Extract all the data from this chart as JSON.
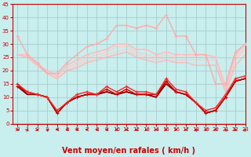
{
  "title": "",
  "xlabel": "Vent moyen/en rafales ( km/h )",
  "ylabel": "",
  "bg_color": "#c8eeee",
  "grid_color": "#aacccc",
  "xlim": [
    -0.5,
    23
  ],
  "ylim": [
    0,
    45
  ],
  "yticks": [
    0,
    5,
    10,
    15,
    20,
    25,
    30,
    35,
    40,
    45
  ],
  "xticks": [
    0,
    1,
    2,
    3,
    4,
    5,
    6,
    7,
    8,
    9,
    10,
    11,
    12,
    13,
    14,
    15,
    16,
    17,
    18,
    19,
    20,
    21,
    22,
    23
  ],
  "series": [
    {
      "name": "rafales_max_light",
      "y": [
        33,
        26,
        23,
        19,
        19,
        23,
        26,
        29,
        30,
        32,
        37,
        37,
        36,
        37,
        36,
        41,
        33,
        33,
        26,
        26,
        15,
        15,
        27,
        30
      ],
      "color": "#ffaaaa",
      "lw": 1.0,
      "marker": "+",
      "ms": 3.0,
      "zorder": 3
    },
    {
      "name": "vent_moyen_upper_light",
      "y": [
        26,
        26,
        22,
        20,
        18,
        22,
        24,
        26,
        27,
        28,
        30,
        30,
        28,
        28,
        26,
        27,
        26,
        26,
        26,
        26,
        25,
        14,
        26,
        30
      ],
      "color": "#ffbbbb",
      "lw": 1.0,
      "marker": "+",
      "ms": 3.0,
      "zorder": 2
    },
    {
      "name": "vent_moyen_flat_light1",
      "y": [
        26,
        26,
        22,
        19,
        18,
        21,
        23,
        25,
        26,
        27,
        29,
        29,
        27,
        26,
        25,
        26,
        25,
        25,
        25,
        25,
        25,
        14,
        25,
        29
      ],
      "color": "#ffcccc",
      "lw": 1.0,
      "marker": null,
      "ms": 0,
      "zorder": 1
    },
    {
      "name": "vent_moyen_flat_light2",
      "y": [
        26,
        25,
        22,
        19,
        17,
        20,
        22,
        24,
        25,
        26,
        27,
        28,
        26,
        25,
        24,
        25,
        24,
        24,
        24,
        24,
        24,
        13,
        24,
        28
      ],
      "color": "#ffcccc",
      "lw": 1.0,
      "marker": null,
      "ms": 0,
      "zorder": 1
    },
    {
      "name": "vent_moyen_declining_light",
      "y": [
        26,
        25,
        22,
        19,
        17,
        20,
        21,
        23,
        24,
        25,
        26,
        27,
        25,
        24,
        23,
        24,
        23,
        23,
        22,
        22,
        22,
        12,
        22,
        26
      ],
      "color": "#ffbbbb",
      "lw": 1.2,
      "marker": null,
      "ms": 0,
      "zorder": 1
    },
    {
      "name": "rafales_dark",
      "y": [
        15,
        12,
        11,
        10,
        5,
        8,
        11,
        12,
        11,
        14,
        12,
        14,
        12,
        12,
        11,
        17,
        13,
        12,
        8,
        5,
        6,
        11,
        17,
        18
      ],
      "color": "#ff2222",
      "lw": 1.0,
      "marker": "+",
      "ms": 3.5,
      "zorder": 4
    },
    {
      "name": "vent_moyen_dark1",
      "y": [
        14,
        12,
        11,
        10,
        4,
        8,
        10,
        11,
        11,
        13,
        11,
        13,
        11,
        11,
        11,
        16,
        12,
        11,
        8,
        4,
        5,
        10,
        16,
        17
      ],
      "color": "#cc0000",
      "lw": 1.0,
      "marker": "+",
      "ms": 3.0,
      "zorder": 3
    },
    {
      "name": "vent_moyen_dark2",
      "y": [
        14,
        11,
        11,
        10,
        4,
        8,
        10,
        11,
        11,
        12,
        11,
        12,
        11,
        11,
        10,
        15,
        12,
        11,
        8,
        4,
        5,
        10,
        16,
        17
      ],
      "color": "#dd0000",
      "lw": 1.0,
      "marker": null,
      "ms": 0,
      "zorder": 2
    },
    {
      "name": "vent_moyen_dark3",
      "y": [
        15,
        11,
        11,
        10,
        4,
        8,
        10,
        11,
        11,
        12,
        11,
        12,
        11,
        11,
        10,
        16,
        12,
        11,
        8,
        4,
        5,
        10,
        16,
        17
      ],
      "color": "#990000",
      "lw": 1.0,
      "marker": null,
      "ms": 0,
      "zorder": 2
    },
    {
      "name": "vent_moyen_dark_flat",
      "y": [
        14,
        11,
        11,
        10,
        4,
        8,
        10,
        11,
        11,
        12,
        11,
        12,
        11,
        11,
        10,
        15,
        12,
        11,
        8,
        4,
        5,
        10,
        16,
        17
      ],
      "color": "#880000",
      "lw": 1.0,
      "marker": null,
      "ms": 0,
      "zorder": 2
    }
  ],
  "arrow_color": "#cc0000",
  "xlabel_color": "#cc0000",
  "xlabel_fontsize": 7,
  "tick_fontsize": 5,
  "tick_color": "#cc0000",
  "arrow_angles": [
    90,
    45,
    90,
    315,
    270,
    270,
    270,
    270,
    270,
    270,
    270,
    270,
    270,
    270,
    270,
    90,
    90,
    270,
    315,
    270,
    270,
    315,
    90,
    45
  ]
}
